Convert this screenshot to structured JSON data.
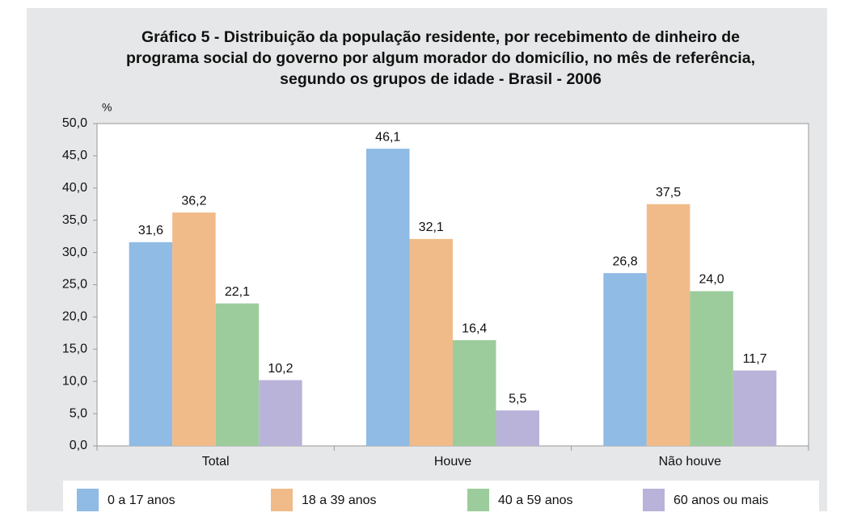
{
  "chart_data": {
    "type": "bar",
    "title": [
      "Gráfico 5 - Distribuição da população residente, por recebimento de dinheiro de",
      "programa social do governo por algum morador do domicílio, no mês de referência,",
      "segundo os grupos de idade - Brasil - 2006"
    ],
    "y_label": "%",
    "categories": [
      "Total",
      "Houve",
      "Não houve"
    ],
    "series": [
      {
        "name": "0 a 17 anos",
        "color": "#8fbbe4",
        "values": [
          31.6,
          46.1,
          26.8
        ],
        "value_labels": [
          "31,6",
          "46,1",
          "26,8"
        ]
      },
      {
        "name": "18 a 39 anos",
        "color": "#f0bb88",
        "values": [
          36.2,
          32.1,
          37.5
        ],
        "value_labels": [
          "36,2",
          "32,1",
          "37,5"
        ]
      },
      {
        "name": "40 a 59 anos",
        "color": "#9ccc9c",
        "values": [
          22.1,
          16.4,
          24.0
        ],
        "value_labels": [
          "22,1",
          "16,4",
          "24,0"
        ]
      },
      {
        "name": "60 anos ou mais",
        "color": "#b9b3d9",
        "values": [
          10.2,
          5.5,
          11.7
        ],
        "value_labels": [
          "10,2",
          "5,5",
          "11,7"
        ]
      }
    ],
    "ylim": [
      0,
      50
    ],
    "yticks": [
      {
        "value": 0,
        "label": "0,0"
      },
      {
        "value": 5,
        "label": "5,0"
      },
      {
        "value": 10,
        "label": "10,0"
      },
      {
        "value": 15,
        "label": "15,0"
      },
      {
        "value": 20,
        "label": "20,0"
      },
      {
        "value": 25,
        "label": "25,0"
      },
      {
        "value": 30,
        "label": "30,0"
      },
      {
        "value": 35,
        "label": "35,0"
      },
      {
        "value": 40,
        "label": "40,0"
      },
      {
        "value": 45,
        "label": "45,0"
      },
      {
        "value": 50,
        "label": "50,0"
      }
    ],
    "grid": false,
    "legend": "bottom"
  }
}
